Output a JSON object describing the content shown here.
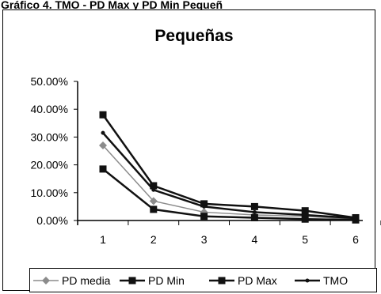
{
  "header_fragment": "Gráfico 4. TMO - PD Max y PD Min Pequeñ",
  "chart_data": {
    "type": "line",
    "title": "Pequeñas",
    "xlabel": "",
    "ylabel": "",
    "categories": [
      "1",
      "2",
      "3",
      "4",
      "5",
      "6"
    ],
    "ylim": [
      0,
      0.5
    ],
    "yticks": [
      "50.00%",
      "40.00%",
      "30.00%",
      "20.00%",
      "10.00%",
      "0.00%"
    ],
    "grid": false,
    "legend_position": "bottom",
    "series": [
      {
        "name": "PD media",
        "values": [
          0.27,
          0.07,
          0.03,
          0.02,
          0.015,
          0.005
        ],
        "color": "#8c8c8c",
        "marker": "diamond"
      },
      {
        "name": "PD Min",
        "values": [
          0.185,
          0.04,
          0.015,
          0.01,
          0.005,
          0.002
        ],
        "color": "#111111",
        "marker": "square"
      },
      {
        "name": "PD Max",
        "values": [
          0.38,
          0.125,
          0.06,
          0.05,
          0.035,
          0.01
        ],
        "color": "#111111",
        "marker": "square"
      },
      {
        "name": "TMO",
        "values": [
          0.315,
          0.11,
          0.05,
          0.03,
          0.02,
          0.008
        ],
        "color": "#111111",
        "marker": "dot"
      }
    ]
  }
}
